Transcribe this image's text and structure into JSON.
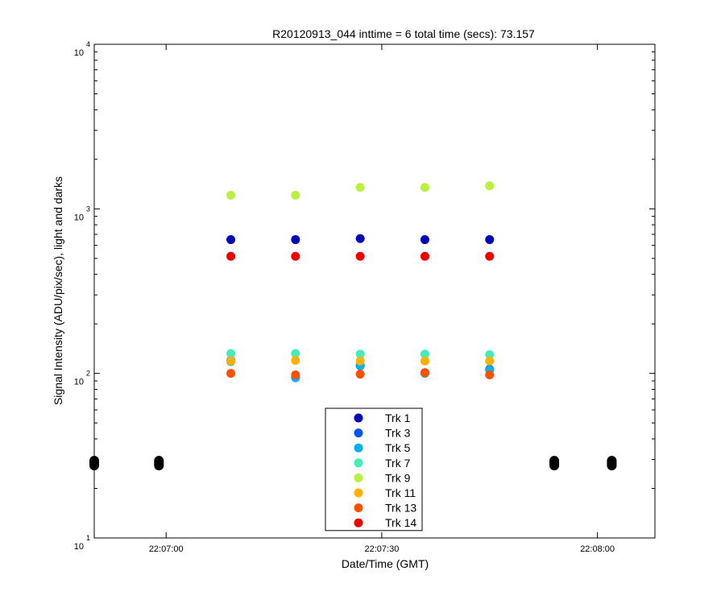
{
  "chart_data": {
    "type": "scatter",
    "title": "R20120913_044 inttime = 6 total time (secs): 73.157",
    "xlabel": "Date/Time (GMT)",
    "ylabel": "Signal Intensity (ADU/pix/sec), light and darks",
    "x_scale": "time",
    "x_tick_labels": [
      "22:07:00",
      "22:07:30",
      "22:08:00"
    ],
    "xlim": [
      "22:06:50",
      "22:08:08"
    ],
    "y_scale": "log",
    "ylim": [
      10,
      10000
    ],
    "y_tick_labels": [
      {
        "base": "10",
        "exp": "1"
      },
      {
        "base": "10",
        "exp": "2"
      },
      {
        "base": "10",
        "exp": "3"
      },
      {
        "base": "10",
        "exp": "4"
      }
    ],
    "grid": false,
    "legend_position": "bottom-center",
    "x": [
      "22:07:09",
      "22:07:18",
      "22:07:27",
      "22:07:36",
      "22:07:45"
    ],
    "series": [
      {
        "name": "Trk 1",
        "color": "#0000bb",
        "values": [
          650,
          650,
          660,
          650,
          650
        ]
      },
      {
        "name": "Trk 3",
        "color": "#0055ee",
        "values": [
          120,
          95,
          112,
          101,
          106
        ]
      },
      {
        "name": "Trk 5",
        "color": "#00b0f0",
        "values": [
          118,
          94,
          111,
          100,
          105
        ]
      },
      {
        "name": "Trk 7",
        "color": "#44eebb",
        "values": [
          132,
          132,
          131,
          131,
          130
        ]
      },
      {
        "name": "Trk 9",
        "color": "#bbf040",
        "values": [
          1210,
          1210,
          1350,
          1350,
          1380
        ]
      },
      {
        "name": "Trk 11",
        "color": "#ffb000",
        "values": [
          119,
          120,
          119,
          119,
          119
        ]
      },
      {
        "name": "Trk 13",
        "color": "#ff5000",
        "values": [
          100,
          98,
          99,
          101,
          98
        ]
      },
      {
        "name": "Trk 14",
        "color": "#ee0000",
        "values": [
          515,
          515,
          515,
          515,
          515
        ]
      }
    ],
    "darks": {
      "color": "#000000",
      "x": [
        "22:06:50",
        "22:06:59",
        "22:07:54",
        "22:08:02"
      ],
      "values": [
        28.5,
        28.5,
        28.5,
        28.5
      ]
    }
  }
}
